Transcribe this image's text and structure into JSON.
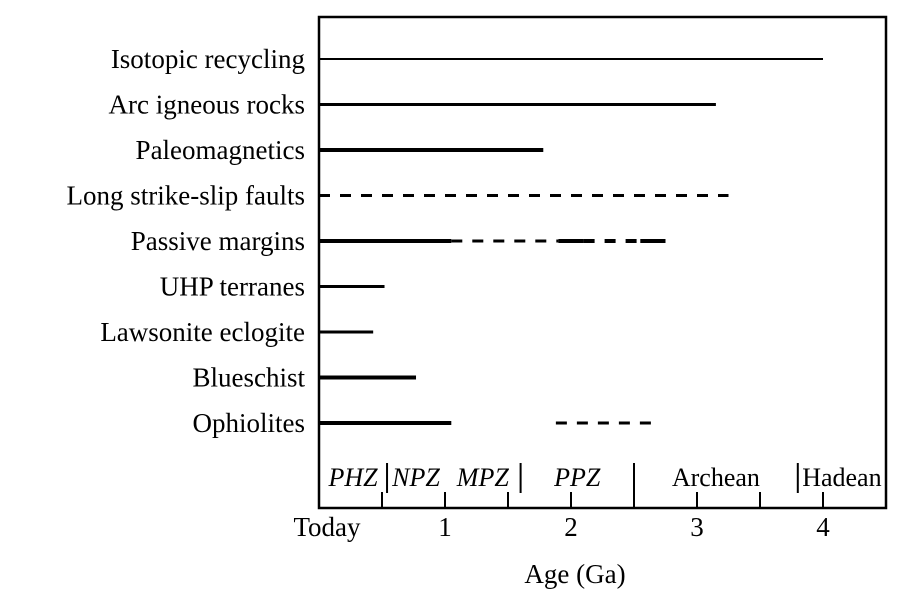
{
  "chart_data": {
    "type": "timeline",
    "xlabel": "Age (Ga)",
    "xlim": [
      0,
      4.5
    ],
    "xticks": [
      {
        "value": 0,
        "label": "Today"
      },
      {
        "value": 1,
        "label": "1"
      },
      {
        "value": 2,
        "label": "2"
      },
      {
        "value": 3,
        "label": "3"
      },
      {
        "value": 4,
        "label": "4"
      }
    ],
    "minor_ticks": [
      0.5,
      1.5,
      2.5,
      3.5,
      4.5
    ],
    "eras": [
      {
        "label": "PHZ",
        "italic": true,
        "start": 0,
        "end": 0.54
      },
      {
        "label": "NPZ",
        "italic": true,
        "start": 0.54,
        "end": 1.0
      },
      {
        "label": "MPZ",
        "italic": true,
        "start": 1.0,
        "end": 1.6
      },
      {
        "label": "PPZ",
        "italic": true,
        "start": 1.6,
        "end": 2.5
      },
      {
        "label": "Archean",
        "italic": false,
        "start": 2.5,
        "end": 3.8
      },
      {
        "label": "Hadean",
        "italic": false,
        "start": 3.8,
        "end": 4.5
      }
    ],
    "era_boundaries": [
      0.54,
      1.6,
      2.5,
      3.8
    ],
    "rows": [
      {
        "label": "Isotopic recycling",
        "segments": [
          {
            "start": 0,
            "end": 4.0,
            "style": "solid",
            "weight": "thin"
          }
        ]
      },
      {
        "label": "Arc igneous rocks",
        "segments": [
          {
            "start": 0,
            "end": 3.15,
            "style": "solid",
            "weight": "medium"
          }
        ]
      },
      {
        "label": "Paleomagnetics",
        "segments": [
          {
            "start": 0,
            "end": 1.78,
            "style": "solid",
            "weight": "thick"
          }
        ]
      },
      {
        "label": "Long strike-slip faults",
        "segments": [
          {
            "start": 0,
            "end": 3.25,
            "style": "dashed",
            "weight": "medium"
          }
        ]
      },
      {
        "label": "Passive margins",
        "segments": [
          {
            "start": 0,
            "end": 1.05,
            "style": "solid",
            "weight": "thick"
          },
          {
            "start": 1.05,
            "end": 1.9,
            "style": "dashed",
            "weight": "medium"
          },
          {
            "start": 1.9,
            "end": 2.1,
            "style": "solid",
            "weight": "thick"
          },
          {
            "start": 2.1,
            "end": 2.55,
            "style": "dashed",
            "weight": "thick"
          },
          {
            "start": 2.55,
            "end": 2.75,
            "style": "solid",
            "weight": "thick"
          }
        ]
      },
      {
        "label": "UHP terranes",
        "segments": [
          {
            "start": 0,
            "end": 0.52,
            "style": "solid",
            "weight": "medium"
          }
        ]
      },
      {
        "label": "Lawsonite eclogite",
        "segments": [
          {
            "start": 0,
            "end": 0.43,
            "style": "solid",
            "weight": "medium"
          }
        ]
      },
      {
        "label": "Blueschist",
        "segments": [
          {
            "start": 0,
            "end": 0.77,
            "style": "solid",
            "weight": "thick"
          }
        ]
      },
      {
        "label": "Ophiolites",
        "segments": [
          {
            "start": 0,
            "end": 1.05,
            "style": "solid",
            "weight": "thick"
          },
          {
            "start": 1.88,
            "end": 2.65,
            "style": "dashed",
            "weight": "medium"
          }
        ]
      }
    ]
  }
}
